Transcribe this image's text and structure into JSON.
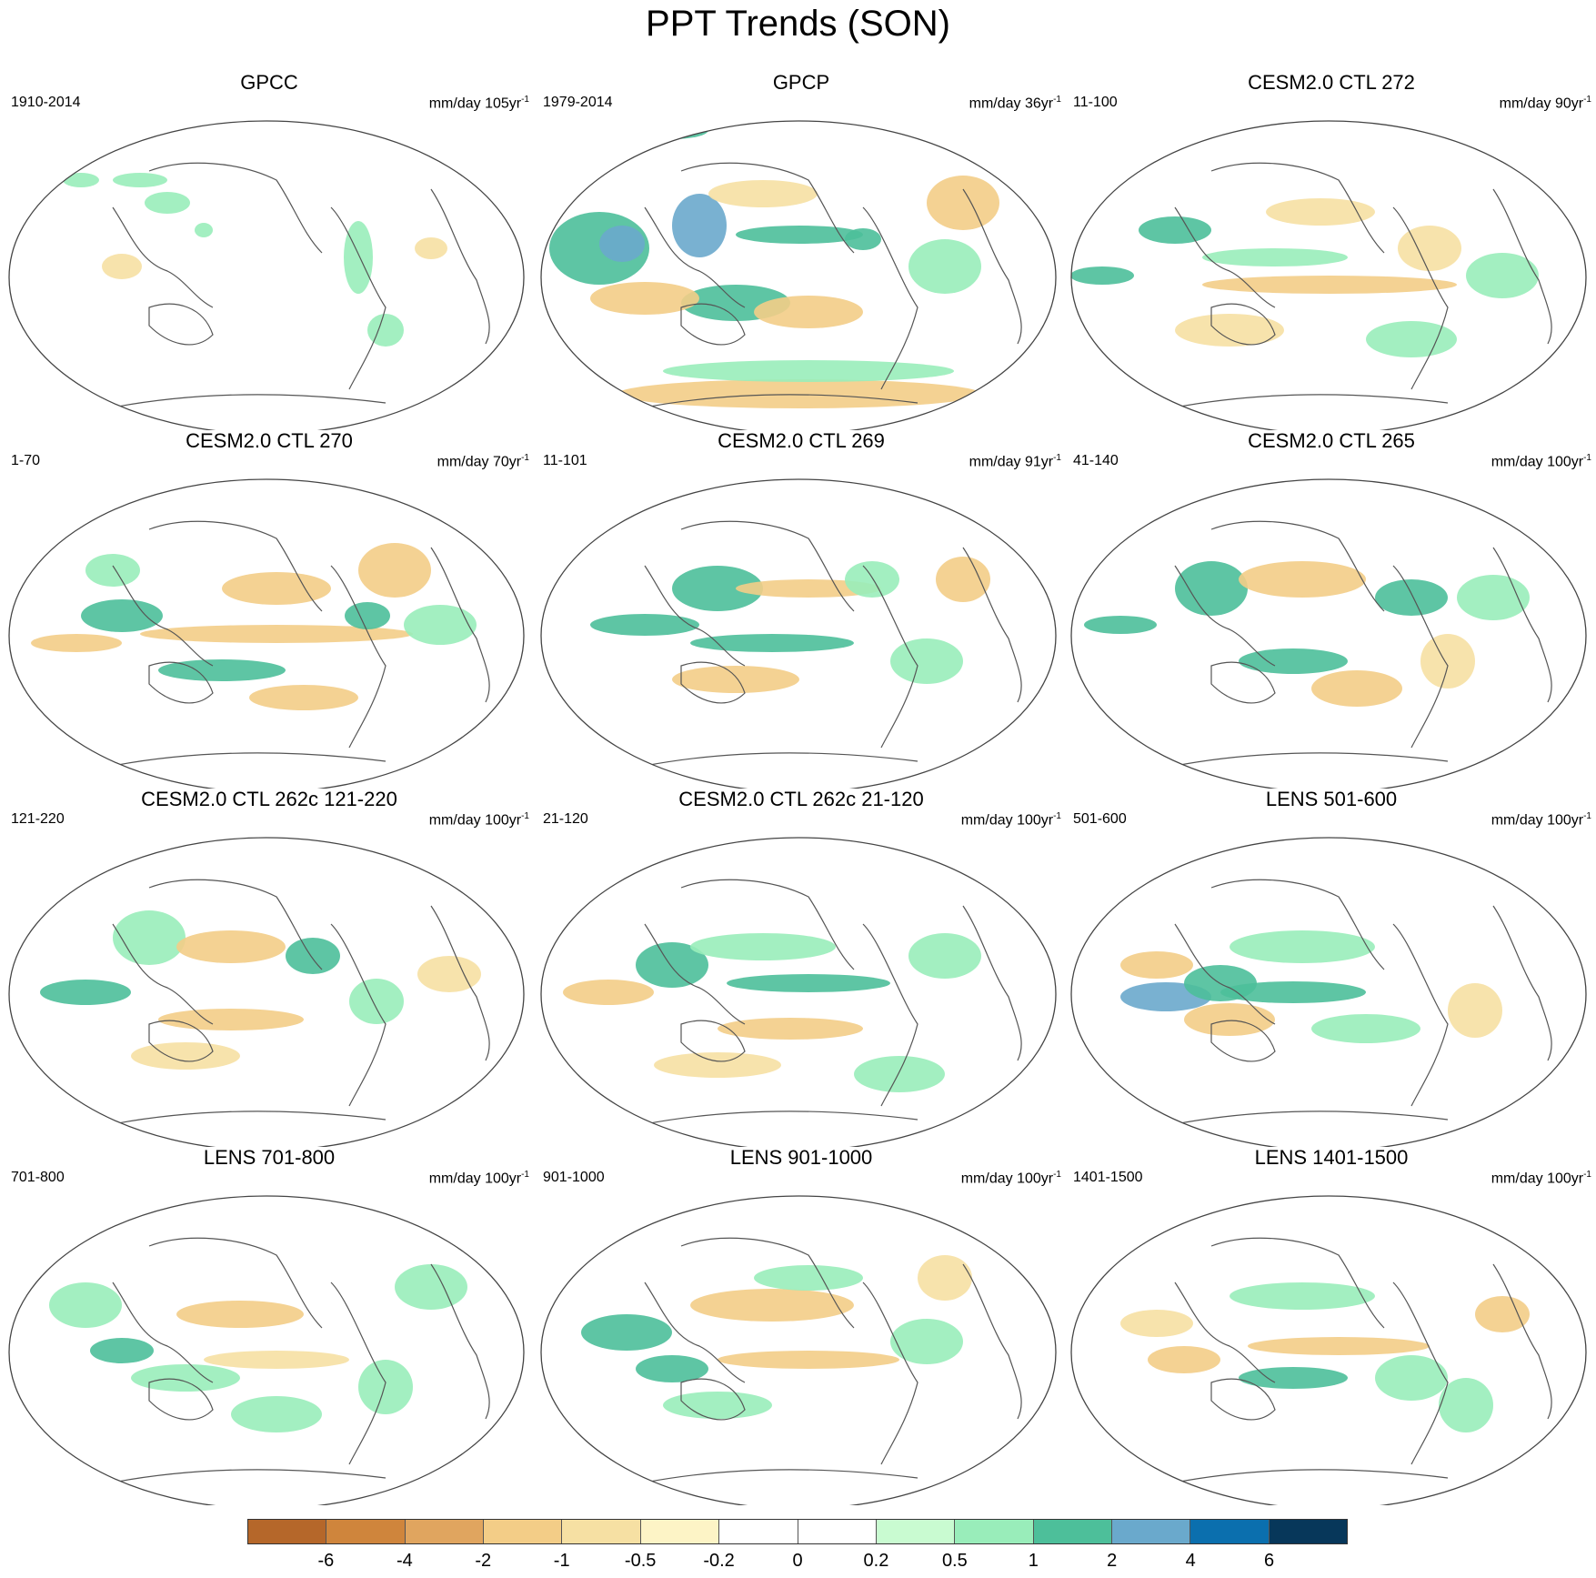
{
  "title": "PPT Trends (SON)",
  "units_prefix": "mm/day ",
  "units_suffix": "yr",
  "units_exponent": "-1",
  "panels": [
    {
      "title": "GPCC",
      "period": "1910-2014",
      "years": "105"
    },
    {
      "title": "GPCP",
      "period": "1979-2014",
      "years": "36"
    },
    {
      "title": "CESM2.0 CTL 272",
      "period": "11-100",
      "years": "90"
    },
    {
      "title": "CESM2.0 CTL 270",
      "period": "1-70",
      "years": "70"
    },
    {
      "title": "CESM2.0 CTL 269",
      "period": "11-101",
      "years": "91"
    },
    {
      "title": "CESM2.0 CTL 265",
      "period": "41-140",
      "years": "100"
    },
    {
      "title": "CESM2.0 CTL 262c 121-220",
      "period": "121-220",
      "years": "100"
    },
    {
      "title": "CESM2.0 CTL 262c 21-120",
      "period": "21-120",
      "years": "100"
    },
    {
      "title": "LENS 501-600",
      "period": "501-600",
      "years": "100"
    },
    {
      "title": "LENS 701-800",
      "period": "701-800",
      "years": "100"
    },
    {
      "title": "LENS 901-1000",
      "period": "901-1000",
      "years": "100"
    },
    {
      "title": "LENS 1401-1500",
      "period": "1401-1500",
      "years": "100"
    }
  ],
  "colorbar": {
    "colors": [
      "#b5672a",
      "#cf853c",
      "#e0a55f",
      "#f3cd87",
      "#f6e0a3",
      "#fdf4c6",
      "#ffffff",
      "#ffffff",
      "#c9fbd1",
      "#99edba",
      "#4dbf9a",
      "#6aa9cc",
      "#0b6fae",
      "#07375a"
    ],
    "labels": [
      "-6",
      "-4",
      "-2",
      "-1",
      "-0.5",
      "-0.2",
      "0",
      "0.2",
      "0.5",
      "1",
      "2",
      "4",
      "6"
    ]
  }
}
